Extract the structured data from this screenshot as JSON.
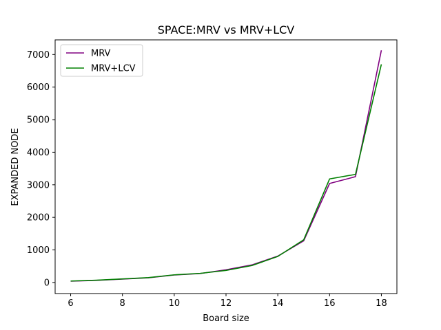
{
  "chart_data": {
    "type": "line",
    "title": "SPACE:MRV vs MRV+LCV",
    "xlabel": "Board size",
    "ylabel": "EXPANDED NODE",
    "xlim": [
      5.4,
      18.6
    ],
    "ylim": [
      -340,
      7450
    ],
    "x_ticks": [
      6,
      8,
      10,
      12,
      14,
      16,
      18
    ],
    "y_ticks": [
      0,
      1000,
      2000,
      3000,
      4000,
      5000,
      6000,
      7000
    ],
    "x": [
      6,
      7,
      8,
      9,
      10,
      11,
      12,
      13,
      14,
      15,
      16,
      17,
      18
    ],
    "series": [
      {
        "name": "MRV",
        "color": "#800080",
        "values": [
          40,
          65,
          105,
          145,
          230,
          275,
          390,
          540,
          810,
          1280,
          3040,
          3250,
          7130
        ]
      },
      {
        "name": "MRV+LCV",
        "color": "#008000",
        "values": [
          45,
          70,
          110,
          150,
          235,
          280,
          370,
          520,
          800,
          1310,
          3180,
          3320,
          6700
        ]
      }
    ],
    "legend_position": "top-left",
    "grid": false
  }
}
